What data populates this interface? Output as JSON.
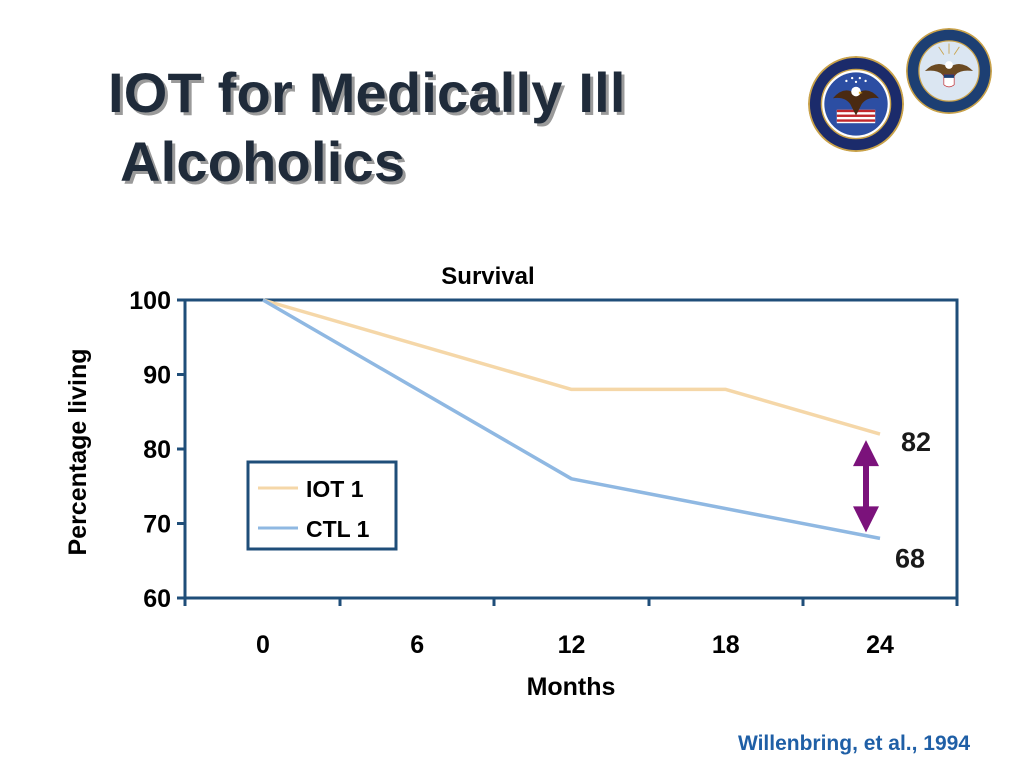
{
  "slide": {
    "title_line1": "IOT for Medically Ill",
    "title_line2": "Alcoholics",
    "citation": "Willenbring, et al., 1994"
  },
  "logos": [
    {
      "name": "va-seal",
      "text": "DEPARTMENT OF VETERANS AFFAIRS · UNITED STATES OF AMERICA"
    },
    {
      "name": "dod-seal",
      "text": "DEPARTMENT OF DEFENSE · UNITED STATES OF AMERICA"
    }
  ],
  "colors": {
    "axis_frame": "#1f4e79",
    "iot_line": "#f5d7a8",
    "ctl_line": "#8fb8e2",
    "arrow": "#7b127b",
    "title_text": "#1f2b3a",
    "citation_text": "#1f5fa6"
  },
  "chart_data": {
    "type": "line",
    "title": "Survival",
    "xlabel": "Months",
    "ylabel": "Percentage living",
    "categories": [
      "0",
      "6",
      "12",
      "18",
      "24"
    ],
    "x": [
      0,
      6,
      12,
      18,
      24
    ],
    "ylim": [
      60,
      100
    ],
    "yticks": [
      100,
      90,
      80,
      70,
      60
    ],
    "grid": false,
    "legend_position": "bottom-left (inside plot)",
    "series": [
      {
        "name": "IOT 1",
        "x": [
          0,
          12,
          18,
          24
        ],
        "values": [
          100,
          88,
          88,
          82
        ],
        "color": "#f5d7a8"
      },
      {
        "name": "CTL 1",
        "x": [
          0,
          12,
          24
        ],
        "values": [
          100,
          76,
          68
        ],
        "color": "#8fb8e2"
      }
    ],
    "annotations": [
      {
        "text": "82",
        "x": 24,
        "y": 82
      },
      {
        "text": "68",
        "x": 24,
        "y": 68
      },
      {
        "type": "double-arrow",
        "x": 24,
        "y_from": 68,
        "y_to": 82,
        "color": "#7b127b"
      }
    ]
  }
}
